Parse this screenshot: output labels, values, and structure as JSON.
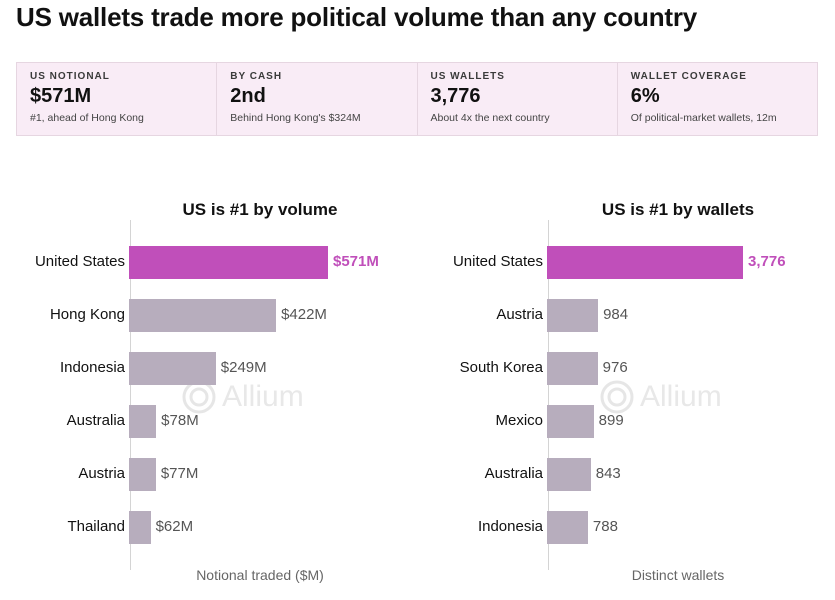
{
  "page_title": "US wallets trade more political volume than any country",
  "kpis": [
    {
      "label": "US NOTIONAL",
      "value": "$571M",
      "sub": "#1, ahead of Hong Kong"
    },
    {
      "label": "BY CASH",
      "value": "2nd",
      "sub": "Behind Hong Kong's $324M"
    },
    {
      "label": "US WALLETS",
      "value": "3,776",
      "sub": "About 4x the next country"
    },
    {
      "label": "WALLET COVERAGE",
      "value": "6%",
      "sub": "Of political-market wallets, 12m"
    }
  ],
  "watermark": "Allium",
  "colors": {
    "highlight": "#c04fba",
    "bar": "#b7adbd",
    "card_bg": "#f9ecf6"
  },
  "chart_data": [
    {
      "type": "bar",
      "orientation": "horizontal",
      "title": "US is #1 by volume",
      "xlabel": "Notional traded ($M)",
      "categories": [
        "United States",
        "Hong Kong",
        "Indonesia",
        "Australia",
        "Austria",
        "Thailand"
      ],
      "values": [
        571,
        422,
        249,
        78,
        77,
        62
      ],
      "value_labels": [
        "$571M",
        "$422M",
        "$249M",
        "$78M",
        "$77M",
        "$62M"
      ],
      "highlight_index": 0,
      "xlim": [
        0,
        571
      ],
      "grid": false
    },
    {
      "type": "bar",
      "orientation": "horizontal",
      "title": "US is #1 by wallets",
      "xlabel": "Distinct wallets",
      "categories": [
        "United States",
        "Austria",
        "South Korea",
        "Mexico",
        "Australia",
        "Indonesia"
      ],
      "values": [
        3776,
        984,
        976,
        899,
        843,
        788
      ],
      "value_labels": [
        "3,776",
        "984",
        "976",
        "899",
        "843",
        "788"
      ],
      "highlight_index": 0,
      "xlim": [
        0,
        3776
      ],
      "grid": false
    }
  ]
}
